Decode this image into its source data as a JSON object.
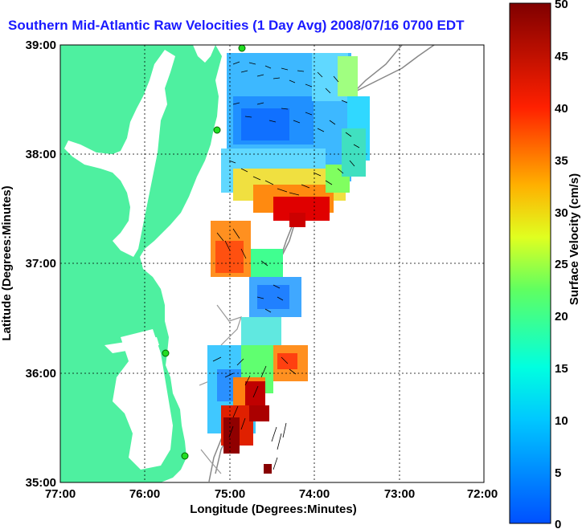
{
  "title": "Southern Mid-Atlantic Raw Velocities (1 Day Avg) 2008/07/16 0700 EDT",
  "xlabel": "Longitude (Degrees:Minutes)",
  "ylabel": "Latitude (Degrees:Minutes)",
  "x_ticks": [
    "77:00",
    "76:00",
    "75:00",
    "74:00",
    "73:00",
    "72:00"
  ],
  "y_ticks": [
    "39:00",
    "38:00",
    "37:00",
    "36:00",
    "35:00"
  ],
  "colorbar": {
    "label": "Surface Velocity (cm/s)",
    "ticks": [
      "50",
      "45",
      "40",
      "35",
      "30",
      "25",
      "20",
      "15",
      "10",
      "5",
      "0"
    ],
    "min": 0,
    "max": 50
  },
  "colors": {
    "land": "#4ef0a0",
    "title": "#1a1aff",
    "station": "#22dd22"
  }
}
